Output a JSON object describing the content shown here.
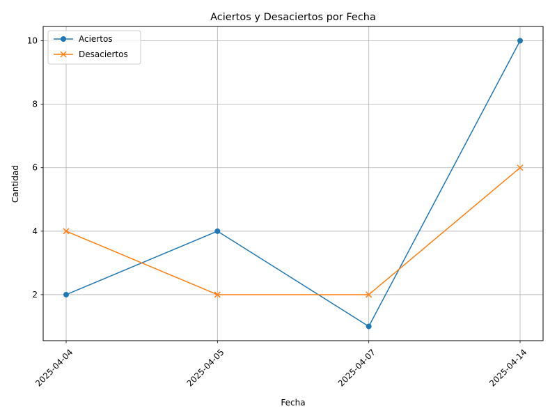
{
  "chart_data": {
    "type": "line",
    "title": "Aciertos y Desaciertos por Fecha",
    "xlabel": "Fecha",
    "ylabel": "Cantidad",
    "categories": [
      "2025-04-04",
      "2025-04-05",
      "2025-04-07",
      "2025-04-14"
    ],
    "ylim": [
      0.55,
      10.45
    ],
    "yticks": [
      2,
      4,
      6,
      8,
      10
    ],
    "grid": true,
    "legend_position": "top-left",
    "series": [
      {
        "name": "Aciertos",
        "values": [
          2,
          4,
          1,
          10
        ],
        "color": "#1f77b4",
        "marker": "circle"
      },
      {
        "name": "Desaciertos",
        "values": [
          4,
          2,
          2,
          6
        ],
        "color": "#ff7f0e",
        "marker": "x"
      }
    ]
  }
}
